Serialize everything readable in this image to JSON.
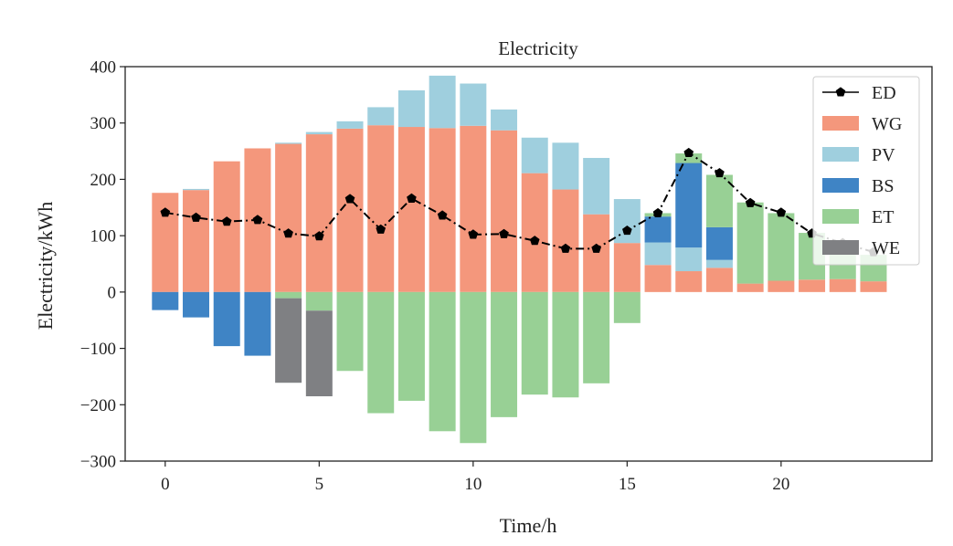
{
  "chart_data": {
    "type": "bar",
    "title": "Electricity",
    "xlabel": "Time/h",
    "ylabel": "Electricity/kWh",
    "xlim": [
      -1.3,
      24.9
    ],
    "ylim": [
      -300,
      400
    ],
    "xticks": [
      0,
      5,
      10,
      15,
      20
    ],
    "yticks": [
      -300,
      -200,
      -100,
      0,
      100,
      200,
      300,
      400
    ],
    "xtick_labels": [
      "0",
      "5",
      "10",
      "15",
      "20"
    ],
    "ytick_labels": [
      "−300",
      "−200",
      "−100",
      "0",
      "100",
      "200",
      "300",
      "400"
    ],
    "legend_position": "top-right",
    "x": [
      0,
      1,
      2,
      3,
      4,
      5,
      6,
      7,
      8,
      9,
      10,
      11,
      12,
      13,
      14,
      15,
      16,
      17,
      18,
      19,
      20,
      21,
      22,
      23
    ],
    "series": [
      {
        "name": "WG",
        "type": "bar",
        "color": "#f4977c",
        "values": [
          176,
          181,
          232,
          255,
          263,
          280,
          290,
          296,
          293,
          291,
          295,
          287,
          211,
          182,
          138,
          87,
          48,
          37,
          43,
          15,
          20,
          22,
          23,
          19
        ]
      },
      {
        "name": "PV",
        "type": "bar",
        "color": "#9fcfde",
        "values": [
          0,
          2,
          0,
          0,
          2,
          4,
          13,
          32,
          65,
          93,
          75,
          37,
          63,
          83,
          100,
          78,
          40,
          42,
          14,
          0,
          0,
          0,
          0,
          0
        ]
      },
      {
        "name": "BS",
        "type": "bar",
        "color": "#3f84c5",
        "values": [
          -32,
          -45,
          -96,
          -113,
          0,
          0,
          0,
          0,
          0,
          0,
          0,
          0,
          0,
          0,
          0,
          0,
          46,
          150,
          58,
          0,
          0,
          0,
          0,
          0
        ]
      },
      {
        "name": "ET",
        "type": "bar",
        "color": "#98d095",
        "values": [
          0,
          0,
          0,
          0,
          -11,
          -33,
          -140,
          -215,
          -193,
          -247,
          -268,
          -222,
          -182,
          -187,
          -162,
          -55,
          6,
          17,
          93,
          144,
          120,
          83,
          53,
          47
        ]
      },
      {
        "name": "WE",
        "type": "bar",
        "color": "#7f8083",
        "values": [
          0,
          0,
          0,
          0,
          -150,
          -152,
          0,
          0,
          0,
          0,
          0,
          0,
          0,
          0,
          0,
          0,
          0,
          0,
          0,
          0,
          0,
          0,
          0,
          0
        ]
      },
      {
        "name": "ED",
        "type": "line",
        "color": "#000000",
        "values": [
          141,
          132,
          125,
          128,
          104,
          99,
          165,
          111,
          166,
          136,
          102,
          103,
          91,
          77,
          77,
          109,
          140,
          247,
          211,
          158,
          141,
          104,
          87,
          71
        ]
      }
    ]
  }
}
